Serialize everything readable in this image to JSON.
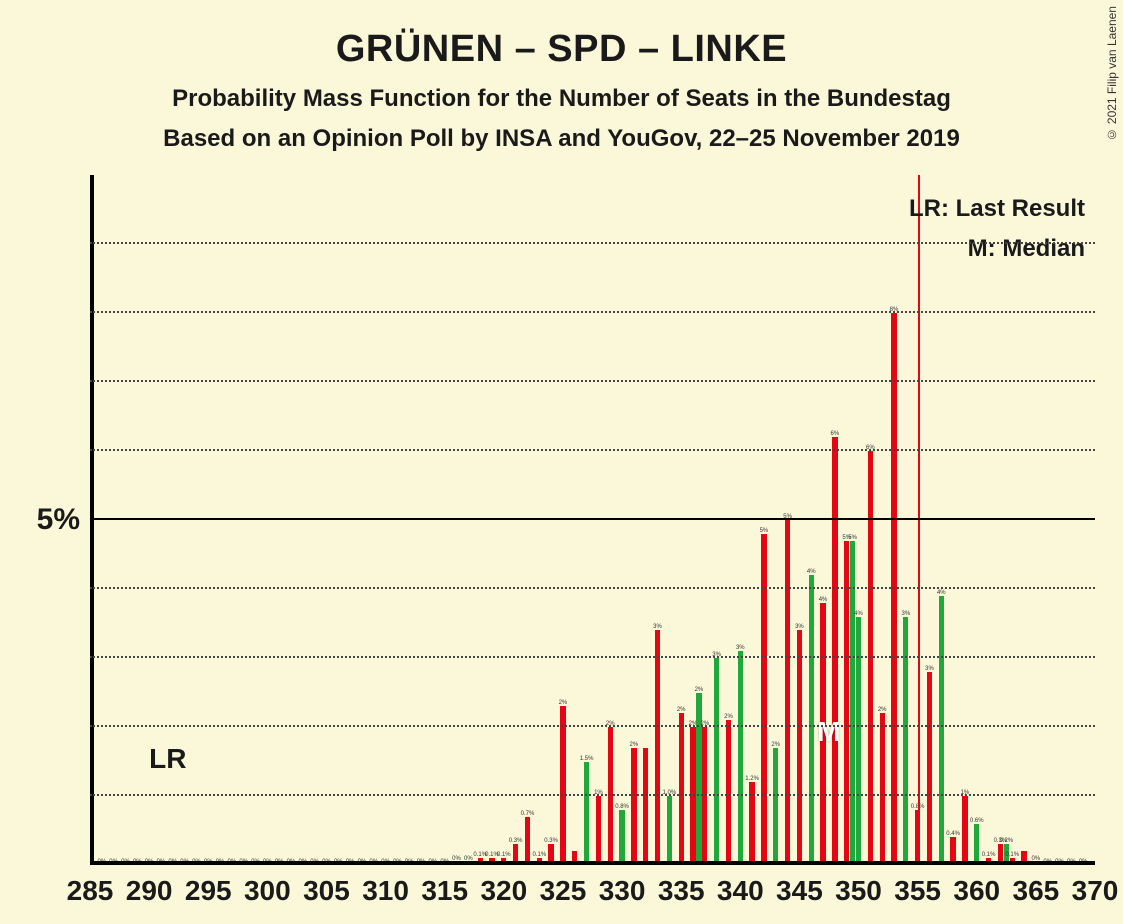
{
  "title": "GRÜNEN – SPD – LINKE",
  "subtitle1": "Probability Mass Function for the Number of Seats in the Bundestag",
  "subtitle2": "Based on an Opinion Poll by INSA and YouGov, 22–25 November 2019",
  "copyright": "© 2021 Filip van Laenen",
  "legend_lr": "LR: Last Result",
  "legend_m": "M: Median",
  "lr_text": "LR",
  "m_text": "M",
  "chart": {
    "type": "bar",
    "background_color": "#fbf8da",
    "colors": {
      "red": "#e30613",
      "green": "#21a83a"
    },
    "xlim": [
      285,
      370
    ],
    "xtick_step": 5,
    "xticks": [
      285,
      290,
      295,
      300,
      305,
      310,
      315,
      320,
      325,
      330,
      335,
      340,
      345,
      350,
      355,
      360,
      365,
      370
    ],
    "ylim": [
      0,
      10
    ],
    "ytick_major": 5,
    "ytick_label": "5%",
    "ytick_minor_step": 1,
    "grid_color": "#444444",
    "bar_width_ratio": 0.45,
    "lr_position": 289,
    "median_position": 348,
    "marker_red_line": 355,
    "bars": [
      {
        "x": 286,
        "v": 0,
        "c": "red",
        "l": "0%"
      },
      {
        "x": 287,
        "v": 0,
        "c": "red",
        "l": "0%"
      },
      {
        "x": 288,
        "v": 0,
        "c": "red",
        "l": "0%"
      },
      {
        "x": 289,
        "v": 0,
        "c": "red",
        "l": "0%"
      },
      {
        "x": 290,
        "v": 0,
        "c": "red",
        "l": "0%"
      },
      {
        "x": 291,
        "v": 0,
        "c": "red",
        "l": "0%"
      },
      {
        "x": 292,
        "v": 0,
        "c": "red",
        "l": "0%"
      },
      {
        "x": 293,
        "v": 0,
        "c": "red",
        "l": "0%"
      },
      {
        "x": 294,
        "v": 0,
        "c": "red",
        "l": "0%"
      },
      {
        "x": 295,
        "v": 0,
        "c": "red",
        "l": "0%"
      },
      {
        "x": 296,
        "v": 0,
        "c": "red",
        "l": "0%"
      },
      {
        "x": 297,
        "v": 0,
        "c": "red",
        "l": "0%"
      },
      {
        "x": 298,
        "v": 0,
        "c": "red",
        "l": "0%"
      },
      {
        "x": 299,
        "v": 0,
        "c": "red",
        "l": "0%"
      },
      {
        "x": 300,
        "v": 0,
        "c": "red",
        "l": "0%"
      },
      {
        "x": 301,
        "v": 0,
        "c": "red",
        "l": "0%"
      },
      {
        "x": 302,
        "v": 0,
        "c": "red",
        "l": "0%"
      },
      {
        "x": 303,
        "v": 0,
        "c": "red",
        "l": "0%"
      },
      {
        "x": 304,
        "v": 0,
        "c": "red",
        "l": "0%"
      },
      {
        "x": 305,
        "v": 0,
        "c": "red",
        "l": "0%"
      },
      {
        "x": 306,
        "v": 0,
        "c": "red",
        "l": "0%"
      },
      {
        "x": 307,
        "v": 0,
        "c": "red",
        "l": "0%"
      },
      {
        "x": 308,
        "v": 0,
        "c": "red",
        "l": "0%"
      },
      {
        "x": 309,
        "v": 0,
        "c": "red",
        "l": "0%"
      },
      {
        "x": 310,
        "v": 0,
        "c": "red",
        "l": "0%"
      },
      {
        "x": 311,
        "v": 0,
        "c": "red",
        "l": "0%"
      },
      {
        "x": 312,
        "v": 0,
        "c": "red",
        "l": "0%"
      },
      {
        "x": 313,
        "v": 0,
        "c": "red",
        "l": "0%"
      },
      {
        "x": 314,
        "v": 0,
        "c": "red",
        "l": "0%"
      },
      {
        "x": 315,
        "v": 0,
        "c": "red",
        "l": "0%"
      },
      {
        "x": 316,
        "v": 0.05,
        "c": "red",
        "l": "0%"
      },
      {
        "x": 317,
        "v": 0.05,
        "c": "red",
        "l": "0%"
      },
      {
        "x": 318,
        "v": 0.1,
        "c": "red",
        "l": "0.1%"
      },
      {
        "x": 319,
        "v": 0.1,
        "c": "red",
        "l": "0.1%"
      },
      {
        "x": 320,
        "v": 0.1,
        "c": "red",
        "l": "0.1%"
      },
      {
        "x": 321,
        "v": 0.3,
        "c": "red",
        "l": "0.3%"
      },
      {
        "x": 322,
        "v": 0.7,
        "c": "red",
        "l": "0.7%"
      },
      {
        "x": 323,
        "v": 0.1,
        "c": "red",
        "l": "0.1%"
      },
      {
        "x": 324,
        "v": 0.3,
        "c": "red",
        "l": "0.3%"
      },
      {
        "x": 325,
        "v": 2.3,
        "c": "red",
        "l": "2%"
      },
      {
        "x": 326,
        "v": 0.2,
        "c": "red",
        "l": ""
      },
      {
        "x": 327,
        "v": 1.5,
        "c": "green",
        "l": "1.5%"
      },
      {
        "x": 328,
        "v": 1.0,
        "c": "red",
        "l": "1%"
      },
      {
        "x": 329,
        "v": 2.0,
        "c": "red",
        "l": "2%"
      },
      {
        "x": 330,
        "v": 0.8,
        "c": "green",
        "l": "0.8%"
      },
      {
        "x": 331,
        "v": 1.7,
        "c": "red",
        "l": "2%"
      },
      {
        "x": 332,
        "v": 1.7,
        "c": "red",
        "l": ""
      },
      {
        "x": 333,
        "v": 3.4,
        "c": "red",
        "l": "3%"
      },
      {
        "x": 334,
        "v": 1.0,
        "c": "green",
        "l": "1.0%"
      },
      {
        "x": 335,
        "v": 2.2,
        "c": "red",
        "l": "2%"
      },
      {
        "x": 336,
        "v": 2.0,
        "c": "red",
        "l": "2%"
      },
      {
        "x": 336.5,
        "v": 2.5,
        "c": "green",
        "l": "2%"
      },
      {
        "x": 337,
        "v": 2.0,
        "c": "red",
        "l": "2%"
      },
      {
        "x": 338,
        "v": 3.0,
        "c": "green",
        "l": "3%"
      },
      {
        "x": 339,
        "v": 2.1,
        "c": "red",
        "l": "2%"
      },
      {
        "x": 340,
        "v": 3.1,
        "c": "green",
        "l": "3%"
      },
      {
        "x": 341,
        "v": 1.2,
        "c": "red",
        "l": "1.2%"
      },
      {
        "x": 342,
        "v": 4.8,
        "c": "red",
        "l": "5%"
      },
      {
        "x": 343,
        "v": 1.7,
        "c": "green",
        "l": "2%"
      },
      {
        "x": 344,
        "v": 5.0,
        "c": "red",
        "l": "5%"
      },
      {
        "x": 345,
        "v": 3.4,
        "c": "red",
        "l": "3%"
      },
      {
        "x": 346,
        "v": 4.2,
        "c": "green",
        "l": "4%"
      },
      {
        "x": 347,
        "v": 3.8,
        "c": "red",
        "l": "4%"
      },
      {
        "x": 348,
        "v": 6.2,
        "c": "red",
        "l": "6%"
      },
      {
        "x": 349,
        "v": 4.7,
        "c": "red",
        "l": "5%"
      },
      {
        "x": 349.5,
        "v": 4.7,
        "c": "green",
        "l": "5%"
      },
      {
        "x": 350,
        "v": 3.6,
        "c": "green",
        "l": "4%"
      },
      {
        "x": 351,
        "v": 6.0,
        "c": "red",
        "l": "6%"
      },
      {
        "x": 352,
        "v": 2.2,
        "c": "red",
        "l": "2%"
      },
      {
        "x": 353,
        "v": 8.0,
        "c": "red",
        "l": "8%"
      },
      {
        "x": 354,
        "v": 3.6,
        "c": "green",
        "l": "3%"
      },
      {
        "x": 355,
        "v": 0.8,
        "c": "red",
        "l": "0.8%"
      },
      {
        "x": 356,
        "v": 2.8,
        "c": "red",
        "l": "3%"
      },
      {
        "x": 357,
        "v": 3.9,
        "c": "green",
        "l": "4%"
      },
      {
        "x": 358,
        "v": 0.4,
        "c": "red",
        "l": "0.4%"
      },
      {
        "x": 359,
        "v": 1.0,
        "c": "red",
        "l": "1%"
      },
      {
        "x": 360,
        "v": 0.6,
        "c": "green",
        "l": "0.6%"
      },
      {
        "x": 361,
        "v": 0.1,
        "c": "red",
        "l": "0.1%"
      },
      {
        "x": 362,
        "v": 0.3,
        "c": "red",
        "l": "0.3%"
      },
      {
        "x": 362.5,
        "v": 0.3,
        "c": "green",
        "l": "0.2%"
      },
      {
        "x": 363,
        "v": 0.1,
        "c": "red",
        "l": "0.1%"
      },
      {
        "x": 364,
        "v": 0.2,
        "c": "red",
        "l": ""
      },
      {
        "x": 365,
        "v": 0.05,
        "c": "red",
        "l": "0%"
      },
      {
        "x": 366,
        "v": 0,
        "c": "red",
        "l": "0%"
      },
      {
        "x": 367,
        "v": 0,
        "c": "red",
        "l": "0%"
      },
      {
        "x": 368,
        "v": 0,
        "c": "red",
        "l": "0%"
      },
      {
        "x": 369,
        "v": 0,
        "c": "red",
        "l": "0%"
      }
    ]
  }
}
